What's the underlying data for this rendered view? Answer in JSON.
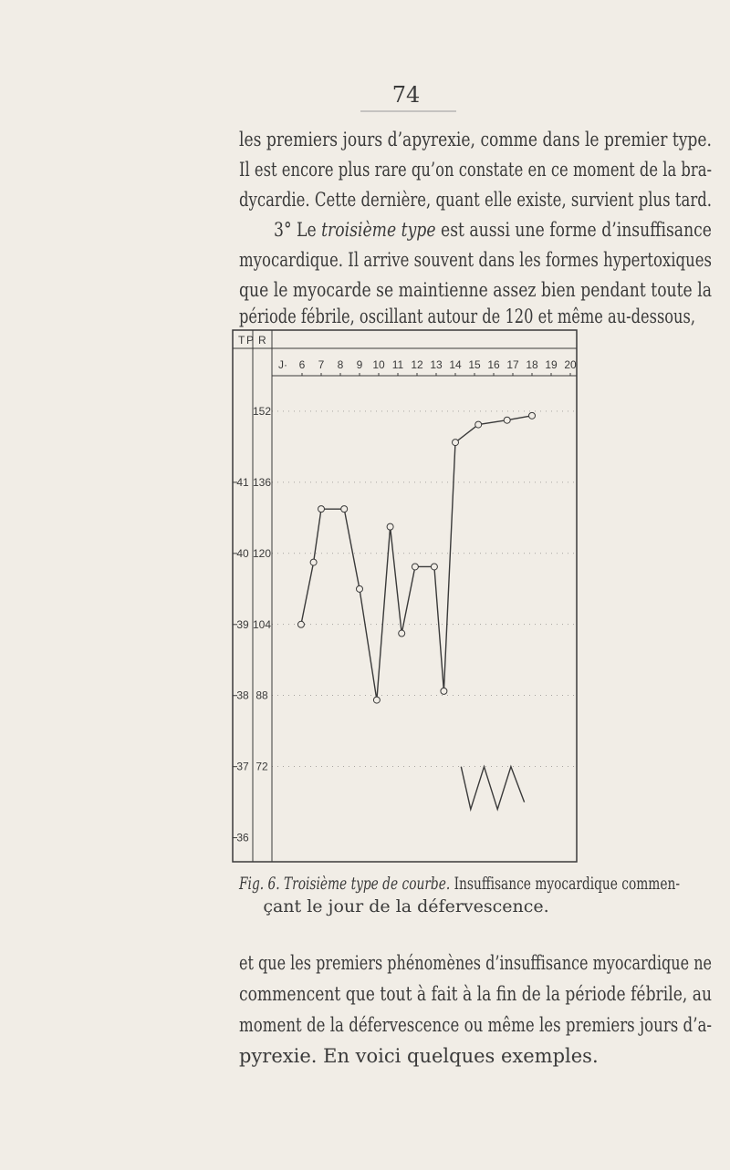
{
  "header": {
    "page_number": "74"
  },
  "paragraph_1": {
    "lines": [
      "les premiers jours d’apyrexie, comme dans le premier type.",
      "Il est encore plus rare qu’on constate en ce moment de la bra-",
      "dycardie. Cette dernière, quant elle existe, survient plus tard.",
      {
        "start": "3° Le ",
        "italic": "troisième type",
        "end": " est aussi une forme d’insuffisance"
      },
      "myocardique. Il arrive souvent dans les formes hypertoxiques",
      "que le myocarde se maintienne assez bien pendant toute la",
      "période fébrile, oscillant autour de 120 et même au-dessous,"
    ]
  },
  "figure": {
    "column_headers": [
      "T",
      "P",
      "R"
    ],
    "day_prefix": "J·"
  },
  "chart_data": {
    "type": "line",
    "xlim": [
      5,
      20
    ],
    "xticks": [
      6,
      7,
      8,
      9,
      10,
      11,
      12,
      13,
      14,
      15,
      16,
      17,
      18,
      19,
      20
    ],
    "ylim": [
      35.7,
      42.5
    ],
    "yticks": [
      36,
      37,
      38,
      39,
      40,
      41
    ],
    "y2lim": [
      51.2,
      160
    ],
    "y2ticks": [
      72,
      88,
      104,
      120,
      136,
      152
    ],
    "series": [
      {
        "axis": "y2",
        "color": "#3a3a3a",
        "marker": "circle",
        "x": [
          5.95,
          6.6,
          7,
          8.2,
          9,
          9.9,
          10.6,
          11.2,
          11.9,
          12.9,
          13.4,
          14,
          15.2,
          16.7,
          18
        ],
        "values": [
          104,
          118,
          130,
          130,
          112,
          87,
          126,
          102,
          117,
          117,
          89,
          145,
          149,
          150,
          151
        ]
      },
      {
        "color": "#3a3a3a",
        "x": [
          14.3,
          14.8,
          15.5,
          16.2,
          16.9,
          17.6
        ],
        "values": [
          37,
          36.4,
          37,
          36.4,
          37,
          36.5
        ]
      }
    ]
  },
  "caption": {
    "italic": "Fig. 6. Troisième type de courbe.",
    "line_1": " Insuffisance myocardique commen-",
    "line_2": "çant le jour de la défervescence."
  },
  "paragraph_2": {
    "lines": [
      "et que les premiers phénomènes d’insuffisance myocardique ne",
      "commencent que tout à fait à la fin de la période fébrile, au",
      "moment de la défervescence ou même les premiers jours d’a-",
      "pyrexie. En voici quelques exemples."
    ]
  }
}
